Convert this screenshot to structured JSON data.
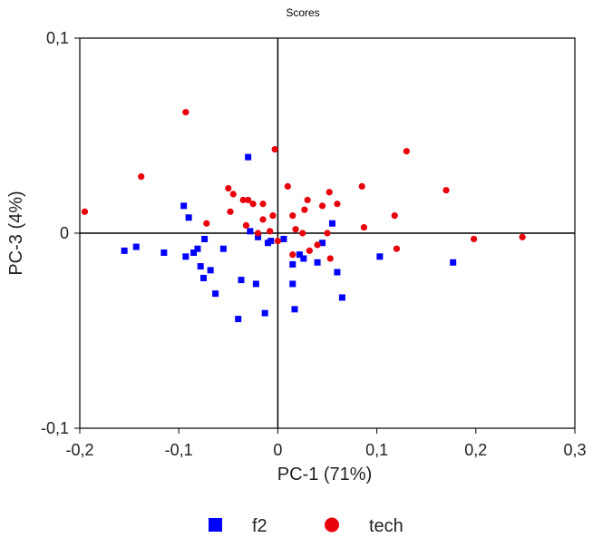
{
  "chart_data": {
    "type": "scatter",
    "title": "Scores",
    "xlabel": "PC-1 (71%)",
    "ylabel": "PC-3 (4%)",
    "xlim": [
      -0.2,
      0.3
    ],
    "ylim": [
      -0.1,
      0.1
    ],
    "x_ticks": [
      "-0,2",
      "-0,1",
      "0",
      "0,1",
      "0,2",
      "0,3"
    ],
    "y_ticks": [
      "-0,1",
      "0",
      "0,1"
    ],
    "grid": false,
    "legend_position": "bottom",
    "series": [
      {
        "name": "f2",
        "marker": "square",
        "color": "#0000ff",
        "points": [
          [
            -0.155,
            -0.009
          ],
          [
            -0.143,
            -0.007
          ],
          [
            -0.115,
            -0.01
          ],
          [
            -0.095,
            0.014
          ],
          [
            -0.09,
            0.008
          ],
          [
            -0.093,
            -0.012
          ],
          [
            -0.085,
            -0.01
          ],
          [
            -0.081,
            -0.008
          ],
          [
            -0.078,
            -0.017
          ],
          [
            -0.074,
            -0.003
          ],
          [
            -0.075,
            -0.023
          ],
          [
            -0.068,
            -0.019
          ],
          [
            -0.063,
            -0.031
          ],
          [
            -0.055,
            -0.008
          ],
          [
            -0.04,
            -0.044
          ],
          [
            -0.037,
            -0.024
          ],
          [
            -0.03,
            0.039
          ],
          [
            -0.028,
            0.001
          ],
          [
            -0.022,
            -0.026
          ],
          [
            -0.02,
            -0.002
          ],
          [
            -0.013,
            -0.041
          ],
          [
            -0.01,
            -0.005
          ],
          [
            -0.007,
            -0.004
          ],
          [
            0.006,
            -0.003
          ],
          [
            0.015,
            -0.026
          ],
          [
            0.015,
            -0.016
          ],
          [
            0.017,
            -0.039
          ],
          [
            0.022,
            -0.011
          ],
          [
            0.026,
            -0.013
          ],
          [
            0.04,
            -0.015
          ],
          [
            0.045,
            -0.005
          ],
          [
            0.055,
            0.005
          ],
          [
            0.06,
            -0.02
          ],
          [
            0.065,
            -0.033
          ],
          [
            0.103,
            -0.012
          ],
          [
            0.177,
            -0.015
          ]
        ]
      },
      {
        "name": "tech",
        "marker": "circle",
        "color": "#e8000b",
        "points": [
          [
            -0.195,
            0.011
          ],
          [
            -0.138,
            0.029
          ],
          [
            -0.093,
            0.062
          ],
          [
            -0.072,
            0.005
          ],
          [
            -0.05,
            0.023
          ],
          [
            -0.045,
            0.02
          ],
          [
            -0.048,
            0.011
          ],
          [
            -0.035,
            0.017
          ],
          [
            -0.03,
            0.017
          ],
          [
            -0.025,
            0.015
          ],
          [
            -0.015,
            0.015
          ],
          [
            -0.015,
            0.007
          ],
          [
            -0.032,
            0.004
          ],
          [
            -0.02,
            0.0
          ],
          [
            -0.008,
            0.001
          ],
          [
            -0.005,
            0.009
          ],
          [
            -0.003,
            0.043
          ],
          [
            0.0,
            -0.004
          ],
          [
            0.01,
            0.024
          ],
          [
            0.015,
            0.009
          ],
          [
            0.018,
            0.002
          ],
          [
            0.015,
            -0.011
          ],
          [
            0.025,
            0.0
          ],
          [
            0.027,
            0.012
          ],
          [
            0.03,
            0.017
          ],
          [
            0.032,
            -0.009
          ],
          [
            0.04,
            -0.006
          ],
          [
            0.045,
            0.014
          ],
          [
            0.052,
            0.021
          ],
          [
            0.05,
            0.0
          ],
          [
            0.053,
            -0.013
          ],
          [
            0.06,
            0.015
          ],
          [
            0.085,
            0.024
          ],
          [
            0.087,
            0.003
          ],
          [
            0.118,
            0.009
          ],
          [
            0.12,
            -0.008
          ],
          [
            0.13,
            0.042
          ],
          [
            0.17,
            0.022
          ],
          [
            0.198,
            -0.003
          ],
          [
            0.247,
            -0.002
          ]
        ]
      }
    ]
  }
}
